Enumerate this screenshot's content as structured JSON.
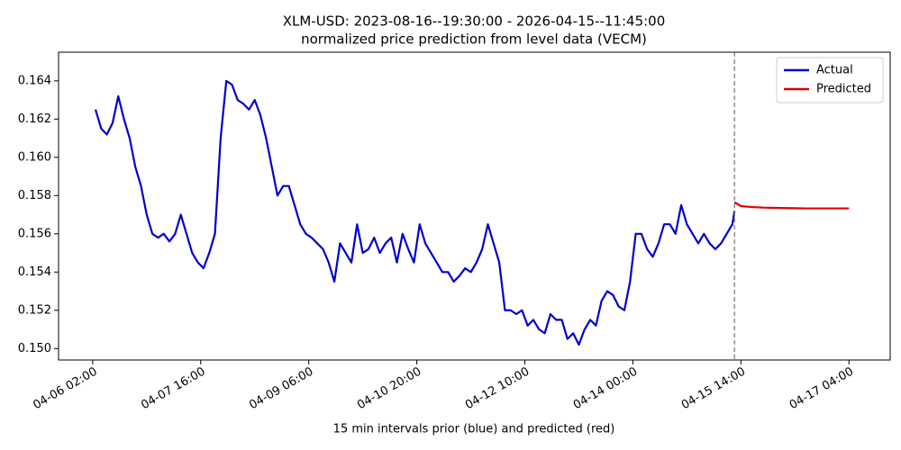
{
  "chart_data": {
    "type": "line",
    "title": "XLM-USD: 2023-08-16--19:30:00 - 2026-04-15--11:45:00",
    "subtitle": "normalized price prediction from level data (VECM)",
    "x_label": "15 min intervals prior (blue) and predicted (red)",
    "xlim": [
      "04-05 14:00",
      "04-17 18:30"
    ],
    "xticks": [
      "04-06 02:00",
      "04-07 16:00",
      "04-09 06:00",
      "04-10 20:00",
      "04-12 10:00",
      "04-14 00:00",
      "04-15 14:00",
      "04-17 04:00"
    ],
    "ylim": [
      0.1494,
      0.1655
    ],
    "yticks": [
      {
        "value": 0.15,
        "label": "0.150"
      },
      0.152,
      0.154,
      0.156,
      0.158,
      {
        "value": 0.16,
        "label": "0.160"
      },
      0.162,
      0.164
    ],
    "legend": "upper right",
    "series": [
      {
        "name": "Actual",
        "color": "#0000cc",
        "x": [
          "04-06 03:00",
          "04-06 05:00",
          "04-06 07:00",
          "04-06 09:00",
          "04-06 11:00",
          "04-06 13:00",
          "04-06 15:00",
          "04-06 17:00",
          "04-06 19:00",
          "04-06 21:00",
          "04-06 23:00",
          "04-07 01:00",
          "04-07 03:00",
          "04-07 05:00",
          "04-07 07:00",
          "04-07 09:00",
          "04-07 11:00",
          "04-07 13:00",
          "04-07 15:00",
          "04-07 17:00",
          "04-07 19:00",
          "04-07 21:00",
          "04-07 23:00",
          "04-08 01:00",
          "04-08 03:00",
          "04-08 05:00",
          "04-08 07:00",
          "04-08 09:00",
          "04-08 11:00",
          "04-08 13:00",
          "04-08 15:00",
          "04-08 17:00",
          "04-08 19:00",
          "04-08 21:00",
          "04-08 23:00",
          "04-09 01:00",
          "04-09 03:00",
          "04-09 05:00",
          "04-09 07:00",
          "04-09 09:00",
          "04-09 11:00",
          "04-09 13:00",
          "04-09 15:00",
          "04-09 17:00",
          "04-09 19:00",
          "04-09 21:00",
          "04-09 23:00",
          "04-10 01:00",
          "04-10 03:00",
          "04-10 05:00",
          "04-10 07:00",
          "04-10 09:00",
          "04-10 11:00",
          "04-10 13:00",
          "04-10 15:00",
          "04-10 17:00",
          "04-10 19:00",
          "04-10 21:00",
          "04-10 23:00",
          "04-11 01:00",
          "04-11 03:00",
          "04-11 05:00",
          "04-11 07:00",
          "04-11 09:00",
          "04-11 11:00",
          "04-11 13:00",
          "04-11 15:00",
          "04-11 17:00",
          "04-11 19:00",
          "04-11 21:00",
          "04-11 23:00",
          "04-12 01:00",
          "04-12 03:00",
          "04-12 05:00",
          "04-12 07:00",
          "04-12 09:00",
          "04-12 11:00",
          "04-12 13:00",
          "04-12 15:00",
          "04-12 17:00",
          "04-12 19:00",
          "04-12 21:00",
          "04-12 23:00",
          "04-13 01:00",
          "04-13 03:00",
          "04-13 05:00",
          "04-13 07:00",
          "04-13 09:00",
          "04-13 11:00",
          "04-13 13:00",
          "04-13 15:00",
          "04-13 17:00",
          "04-13 19:00",
          "04-13 21:00",
          "04-13 23:00",
          "04-14 01:00",
          "04-14 03:00",
          "04-14 05:00",
          "04-14 07:00",
          "04-14 09:00",
          "04-14 11:00",
          "04-14 13:00",
          "04-14 15:00",
          "04-14 17:00",
          "04-14 19:00",
          "04-14 21:00",
          "04-14 23:00",
          "04-15 01:00",
          "04-15 03:00",
          "04-15 05:00",
          "04-15 07:00",
          "04-15 09:00",
          "04-15 11:00",
          "04-15 11:45"
        ],
        "values": [
          0.1625,
          0.1615,
          0.1612,
          0.1618,
          0.1632,
          0.162,
          0.161,
          0.1595,
          0.1585,
          0.157,
          0.156,
          0.1558,
          0.156,
          0.1556,
          0.156,
          0.157,
          0.156,
          0.155,
          0.1545,
          0.1542,
          0.155,
          0.156,
          0.161,
          0.164,
          0.1638,
          0.163,
          0.1628,
          0.1625,
          0.163,
          0.1622,
          0.161,
          0.1595,
          0.158,
          0.1585,
          0.1585,
          0.1575,
          0.1565,
          0.156,
          0.1558,
          0.1555,
          0.1552,
          0.1545,
          0.1535,
          0.1555,
          0.155,
          0.1545,
          0.1565,
          0.155,
          0.1552,
          0.1558,
          0.155,
          0.1555,
          0.1558,
          0.1545,
          0.156,
          0.1552,
          0.1545,
          0.1565,
          0.1555,
          0.155,
          0.1545,
          0.154,
          0.154,
          0.1535,
          0.1538,
          0.1542,
          0.154,
          0.1545,
          0.1552,
          0.1565,
          0.1555,
          0.1545,
          0.152,
          0.152,
          0.1518,
          0.152,
          0.1512,
          0.1515,
          0.151,
          0.1508,
          0.1518,
          0.1515,
          0.1515,
          0.1505,
          0.1508,
          0.1502,
          0.151,
          0.1515,
          0.1512,
          0.1525,
          0.153,
          0.1528,
          0.1522,
          0.152,
          0.1535,
          0.156,
          0.156,
          0.1552,
          0.1548,
          0.1555,
          0.1565,
          0.1565,
          0.156,
          0.1575,
          0.1565,
          0.156,
          0.1555,
          0.156,
          0.1555,
          0.1552,
          0.1555,
          0.156,
          0.1565,
          0.1572
        ]
      },
      {
        "name": "Predicted",
        "color": "#dd0000",
        "x": [
          "04-15 11:45",
          "04-15 14:00",
          "04-15 18:00",
          "04-15 22:00",
          "04-16 04:00",
          "04-16 12:00",
          "04-16 20:00",
          "04-17 04:00"
        ],
        "values": [
          0.15765,
          0.15745,
          0.1574,
          0.15737,
          0.15735,
          0.15733,
          0.15733,
          0.15733
        ]
      }
    ]
  }
}
